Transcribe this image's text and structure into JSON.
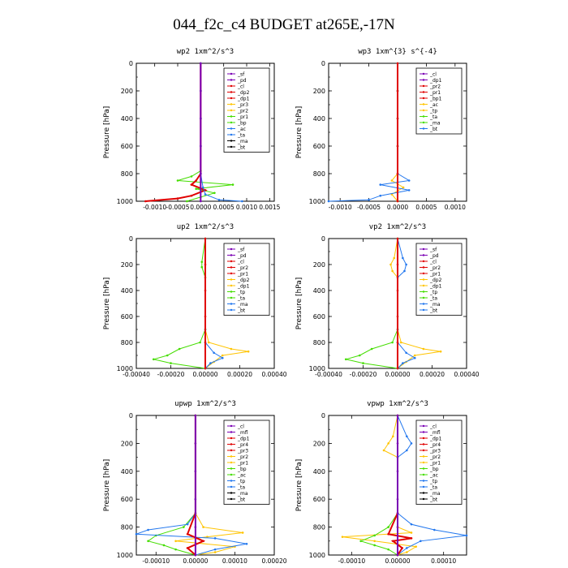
{
  "figure": {
    "title": "044_f2c_c4  BUDGET at265E,-17N"
  },
  "colors": {
    "red": "#e00000",
    "purple": "#7a00b4",
    "orange": "#ffc400",
    "green": "#44dd00",
    "blue": "#2277ee",
    "black": "#000000",
    "cyan": "#00e5ee",
    "axis": "#000000"
  },
  "chart_data": [
    {
      "type": "line",
      "title": "wp2  1xm^2/s^3",
      "ylabel": "Pressure [hPa]",
      "xlabel": "",
      "xlim": [
        -0.0014,
        0.0016
      ],
      "ylim": [
        1000,
        0
      ],
      "xticks": [
        -0.001,
        -0.0005,
        0.0,
        0.0005,
        0.001,
        0.0015
      ],
      "xticklabels": [
        "-0.0010",
        "-0.0005",
        "0.0000",
        "0.0005",
        "0.0010",
        "0.0015"
      ],
      "yticks": [
        0,
        200,
        400,
        600,
        800,
        1000
      ],
      "yticklabels": [
        "0",
        "200",
        "400",
        "600",
        "800",
        "1000"
      ],
      "legend_position": "top-right",
      "legend": [
        "_sf",
        "_pd",
        "_cl",
        "_dp2",
        "_dp1",
        "_pr3",
        "_pr2",
        "_pr1",
        "_bp",
        "_ac",
        "_ta",
        "_ma",
        "_bt"
      ],
      "series": [
        {
          "name": "_pr1",
          "color": "green",
          "y": [
            0,
            200,
            400,
            600,
            780,
            820,
            850,
            880,
            910,
            940,
            970,
            1000
          ],
          "x": [
            0,
            0,
            0,
            0,
            0,
            -0.0002,
            -0.0005,
            0.0007,
            -0.0001,
            0.0003,
            0,
            -0.0003
          ]
        },
        {
          "name": "_pd",
          "color": "red",
          "y": [
            0,
            200,
            400,
            600,
            800,
            850,
            880,
            920,
            960,
            980,
            1000
          ],
          "x": [
            0,
            0,
            0,
            0,
            0,
            -0.0001,
            -0.0002,
            0.0001,
            -0.0002,
            -0.0005,
            -0.0012
          ]
        },
        {
          "name": "_bp",
          "color": "blue",
          "y": [
            0,
            200,
            400,
            600,
            800,
            900,
            950,
            990,
            1000
          ],
          "x": [
            0,
            0,
            0,
            0,
            0,
            5e-05,
            0.0001,
            0.0004,
            0.0009
          ]
        },
        {
          "name": "_sf",
          "color": "purple",
          "y": [
            0,
            200,
            400,
            600,
            800,
            1000
          ],
          "x": [
            0,
            0,
            0,
            0,
            0,
            0
          ]
        }
      ]
    },
    {
      "type": "line",
      "title": "wp3  1xm^{3} s^{-4}",
      "ylabel": "Pressure [hPa]",
      "xlabel": "",
      "xlim": [
        -0.0012,
        0.0012
      ],
      "ylim": [
        1000,
        0
      ],
      "xticks": [
        -0.001,
        -0.0005,
        0.0,
        0.0005,
        0.001
      ],
      "xticklabels": [
        "-0.0010",
        "-0.0005",
        "0.0000",
        "0.0005",
        "0.0010"
      ],
      "yticks": [
        0,
        200,
        400,
        600,
        800,
        1000
      ],
      "yticklabels": [
        "0",
        "200",
        "400",
        "600",
        "800",
        "1000"
      ],
      "legend_position": "top-right",
      "legend": [
        "_cl",
        "_dp1",
        "_pr2",
        "_pr1",
        "_bp1",
        "_ac",
        "_tp",
        "_ta",
        "_ma",
        "_bt"
      ],
      "series": [
        {
          "name": "_pr2",
          "color": "orange",
          "y": [
            0,
            200,
            400,
            600,
            800,
            850,
            900,
            950,
            1000
          ],
          "x": [
            0,
            0,
            0,
            0,
            0,
            -0.0001,
            0.0001,
            -0.0001,
            0
          ]
        },
        {
          "name": "_tp",
          "color": "blue",
          "y": [
            0,
            200,
            400,
            600,
            800,
            850,
            880,
            920,
            960,
            990,
            1000
          ],
          "x": [
            0,
            0,
            0,
            0,
            0,
            0.0002,
            -0.0003,
            0.0002,
            -0.0003,
            -0.0005,
            -0.0012
          ]
        },
        {
          "name": "_cl",
          "color": "red",
          "y": [
            0,
            200,
            400,
            600,
            800,
            1000
          ],
          "x": [
            0,
            0,
            0,
            0,
            0,
            0
          ]
        }
      ]
    },
    {
      "type": "line",
      "title": "up2  1xm^2/s^3",
      "ylabel": "Pressure [hPa]",
      "xlabel": "",
      "xlim": [
        -0.0004,
        0.0004
      ],
      "ylim": [
        1000,
        0
      ],
      "xticks": [
        -0.0004,
        -0.0002,
        0.0,
        0.0002,
        0.0004
      ],
      "xticklabels": [
        "-0.00040",
        "-0.00020",
        "0.00000",
        "0.00020",
        "0.00040"
      ],
      "yticks": [
        0,
        200,
        400,
        600,
        800,
        1000
      ],
      "yticklabels": [
        "0",
        "200",
        "400",
        "600",
        "800",
        "1000"
      ],
      "legend_position": "top-right",
      "legend": [
        "_sf",
        "_pd",
        "_cl",
        "_pr2",
        "_pr1",
        "_dp2",
        "_dp1",
        "_tp",
        "_ta",
        "_ma",
        "_bt"
      ],
      "series": [
        {
          "name": "_pr1",
          "color": "green",
          "y": [
            0,
            180,
            220,
            300,
            700,
            800,
            850,
            900,
            930,
            960,
            1000
          ],
          "x": [
            0,
            -2e-05,
            -2e-05,
            0,
            0,
            -3e-05,
            -0.00015,
            -0.00022,
            -0.0003,
            -0.0002,
            0
          ]
        },
        {
          "name": "_pr2",
          "color": "orange",
          "y": [
            0,
            700,
            800,
            850,
            870,
            900,
            950,
            1000
          ],
          "x": [
            0,
            0,
            2e-05,
            0.00015,
            0.00025,
            0.0001,
            5e-05,
            0
          ]
        },
        {
          "name": "_tp",
          "color": "blue",
          "y": [
            0,
            700,
            800,
            880,
            920,
            960,
            1000
          ],
          "x": [
            0,
            0,
            0,
            5e-05,
            0.0001,
            3e-05,
            0
          ]
        },
        {
          "name": "_sf",
          "color": "red",
          "y": [
            0,
            200,
            400,
            600,
            800,
            1000
          ],
          "x": [
            0,
            0,
            0,
            0,
            0,
            0
          ]
        }
      ]
    },
    {
      "type": "line",
      "title": "vp2  1xm^2/s^3",
      "ylabel": "Pressure [hPa]",
      "xlabel": "",
      "xlim": [
        -0.0004,
        0.0004
      ],
      "ylim": [
        1000,
        0
      ],
      "xticks": [
        -0.0004,
        -0.0002,
        0.0,
        0.0002,
        0.0004
      ],
      "xticklabels": [
        "-0.00040",
        "-0.00020",
        "0.00000",
        "0.00020",
        "0.00040"
      ],
      "yticks": [
        0,
        200,
        400,
        600,
        800,
        1000
      ],
      "yticklabels": [
        "0",
        "200",
        "400",
        "600",
        "800",
        "1000"
      ],
      "legend_position": "top-right",
      "legend": [
        "_sf",
        "_pd",
        "_cl",
        "_pr2",
        "_pr1",
        "_dp2",
        "_dp1",
        "_tp",
        "_ta",
        "_ma",
        "_bt"
      ],
      "series": [
        {
          "name": "_pr1",
          "color": "green",
          "y": [
            0,
            700,
            800,
            850,
            900,
            930,
            960,
            1000
          ],
          "x": [
            0,
            0,
            -3e-05,
            -0.00015,
            -0.00022,
            -0.0003,
            -0.0002,
            0
          ]
        },
        {
          "name": "_pr2",
          "color": "orange",
          "y": [
            0,
            150,
            200,
            250,
            300,
            700,
            800,
            850,
            870,
            900,
            950,
            1000
          ],
          "x": [
            0,
            -2e-05,
            -4e-05,
            -3e-05,
            0,
            0,
            2e-05,
            0.00015,
            0.00025,
            0.0001,
            5e-05,
            0
          ]
        },
        {
          "name": "_tp",
          "color": "blue",
          "y": [
            0,
            150,
            200,
            250,
            300,
            700,
            800,
            880,
            920,
            960,
            1000
          ],
          "x": [
            0,
            3e-05,
            5e-05,
            4e-05,
            0,
            0,
            0,
            5e-05,
            0.0001,
            3e-05,
            0
          ]
        },
        {
          "name": "_sf",
          "color": "red",
          "y": [
            0,
            200,
            400,
            600,
            800,
            1000
          ],
          "x": [
            0,
            0,
            0,
            0,
            0,
            0
          ]
        }
      ]
    },
    {
      "type": "line",
      "title": "upwp  1xm^2/s^3",
      "ylabel": "Pressure [hPa]",
      "xlabel": "",
      "xlim": [
        -0.00015,
        0.0002
      ],
      "ylim": [
        1000,
        0
      ],
      "xticks": [
        -0.0001,
        0.0,
        0.0001,
        0.0002
      ],
      "xticklabels": [
        "-0.00010",
        "0.00000",
        "0.00010",
        "0.00020"
      ],
      "yticks": [
        0,
        200,
        400,
        600,
        800,
        1000
      ],
      "yticklabels": [
        "0",
        "200",
        "400",
        "600",
        "800",
        "1000"
      ],
      "legend_position": "top-right",
      "legend": [
        "_cl",
        "_mfl",
        "_dp1",
        "_pr4",
        "_pr3",
        "_pr2",
        "_pr1",
        "_bp",
        "_ac",
        "_tp",
        "_ta",
        "_ma",
        "_bt"
      ],
      "series": [
        {
          "name": "_pr2",
          "color": "orange",
          "y": [
            0,
            200,
            700,
            800,
            840,
            870,
            900,
            940,
            980,
            1000
          ],
          "x": [
            0,
            0,
            0,
            2e-05,
            0.00012,
            3e-05,
            -5e-05,
            0.0001,
            5e-05,
            0
          ]
        },
        {
          "name": "_pr1",
          "color": "green",
          "y": [
            0,
            700,
            800,
            860,
            900,
            930,
            960,
            1000
          ],
          "x": [
            0,
            0,
            -3e-05,
            -0.0001,
            -0.00012,
            -8e-05,
            -5e-05,
            0
          ]
        },
        {
          "name": "_tp",
          "color": "blue",
          "y": [
            0,
            700,
            780,
            820,
            850,
            880,
            920,
            960,
            1000
          ],
          "x": [
            0,
            0,
            -2e-05,
            -0.00012,
            -0.00015,
            5e-05,
            0.00013,
            5e-05,
            0
          ]
        },
        {
          "name": "_dp1",
          "color": "red",
          "y": [
            0,
            700,
            850,
            900,
            950,
            1000
          ],
          "x": [
            0,
            0,
            -2e-05,
            2e-05,
            -2e-05,
            0
          ]
        },
        {
          "name": "_mfl",
          "color": "purple",
          "y": [
            0,
            200,
            400,
            600,
            800,
            1000
          ],
          "x": [
            0,
            0,
            0,
            0,
            0,
            0
          ]
        }
      ]
    },
    {
      "type": "line",
      "title": "vpwp  1xm^2/s^3",
      "ylabel": "Pressure [hPa]",
      "xlabel": "",
      "xlim": [
        -0.00015,
        0.00015
      ],
      "ylim": [
        1000,
        0
      ],
      "xticks": [
        -0.0001,
        0.0,
        0.0001
      ],
      "xticklabels": [
        "-0.00010",
        "0.00000",
        "0.00010"
      ],
      "yticks": [
        0,
        200,
        400,
        600,
        800,
        1000
      ],
      "yticklabels": [
        "0",
        "200",
        "400",
        "600",
        "800",
        "1000"
      ],
      "legend_position": "top-right",
      "legend": [
        "_cl",
        "_mfl",
        "_dp1",
        "_pr4",
        "_pr3",
        "_pr2",
        "_pr1",
        "_bp",
        "_ac",
        "_tp",
        "_ta",
        "_ma",
        "_bt"
      ],
      "series": [
        {
          "name": "_pr2",
          "color": "orange",
          "y": [
            0,
            150,
            200,
            250,
            300,
            700,
            800,
            840,
            870,
            900,
            940,
            980,
            1000
          ],
          "x": [
            0,
            -1e-05,
            -2e-05,
            -3e-05,
            0,
            0,
            0,
            3e-05,
            -0.00012,
            -5e-05,
            4e-05,
            2e-05,
            0
          ]
        },
        {
          "name": "_pr1",
          "color": "green",
          "y": [
            0,
            700,
            800,
            860,
            900,
            930,
            960,
            1000
          ],
          "x": [
            0,
            0,
            -2e-05,
            -5e-05,
            -8e-05,
            -5e-05,
            -2e-05,
            0
          ]
        },
        {
          "name": "_tp",
          "color": "blue",
          "y": [
            0,
            150,
            200,
            250,
            300,
            700,
            780,
            820,
            860,
            900,
            950,
            1000
          ],
          "x": [
            0,
            2e-05,
            3e-05,
            2e-05,
            0,
            0,
            3e-05,
            8e-05,
            0.00015,
            5e-05,
            2e-05,
            0
          ]
        },
        {
          "name": "_dp1",
          "color": "red",
          "y": [
            0,
            700,
            850,
            880,
            900,
            950,
            1000
          ],
          "x": [
            0,
            0,
            -2e-05,
            3e-05,
            -1e-05,
            1e-05,
            0
          ]
        },
        {
          "name": "_mfl",
          "color": "purple",
          "y": [
            0,
            200,
            400,
            600,
            800,
            1000
          ],
          "x": [
            0,
            0,
            0,
            0,
            0,
            0
          ]
        }
      ]
    }
  ]
}
